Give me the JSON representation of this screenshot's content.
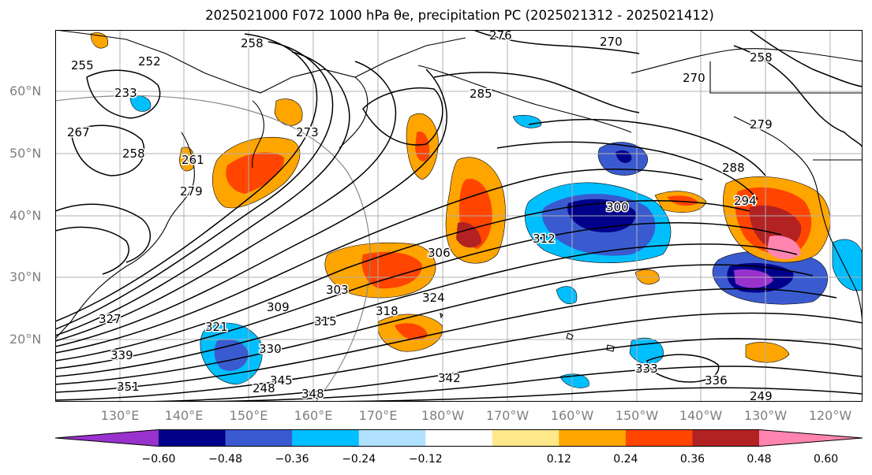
{
  "title": "2025021000 F072 1000 hPa θe, precipitation PC (2025021312 - 2025021412)",
  "map": {
    "projection": "plate-carree",
    "extent_lon": [
      120,
      245
    ],
    "extent_lat": [
      10,
      70
    ],
    "lat_labels": [
      "20°N",
      "30°N",
      "40°N",
      "50°N",
      "60°N"
    ],
    "lon_labels": [
      "130°E",
      "140°E",
      "150°E",
      "160°E",
      "170°E",
      "180°W",
      "170°W",
      "160°W",
      "150°W",
      "140°W",
      "130°W",
      "120°W"
    ],
    "contour_labels": [
      "276",
      "258",
      "270",
      "255",
      "252",
      "233",
      "258",
      "261",
      "258",
      "267",
      "285",
      "279",
      "288",
      "294",
      "273",
      "279",
      "300",
      "312",
      "306",
      "303",
      "309",
      "315",
      "318",
      "324",
      "321",
      "327",
      "330",
      "333",
      "336",
      "339",
      "342",
      "345",
      "348",
      "351",
      "249",
      "248",
      "270"
    ]
  },
  "colorbar": {
    "ticks": [
      "−0.60",
      "−0.48",
      "−0.36",
      "−0.24",
      "−0.12",
      "0.12",
      "0.24",
      "0.36",
      "0.48",
      "0.60"
    ],
    "colors": [
      "#9932cc",
      "#00008b",
      "#3a5bd0",
      "#00bfff",
      "#b0e2ff",
      "#ffffff",
      "#fee88a",
      "#ffa500",
      "#ff4500",
      "#b22222",
      "#ff85b0"
    ]
  }
}
